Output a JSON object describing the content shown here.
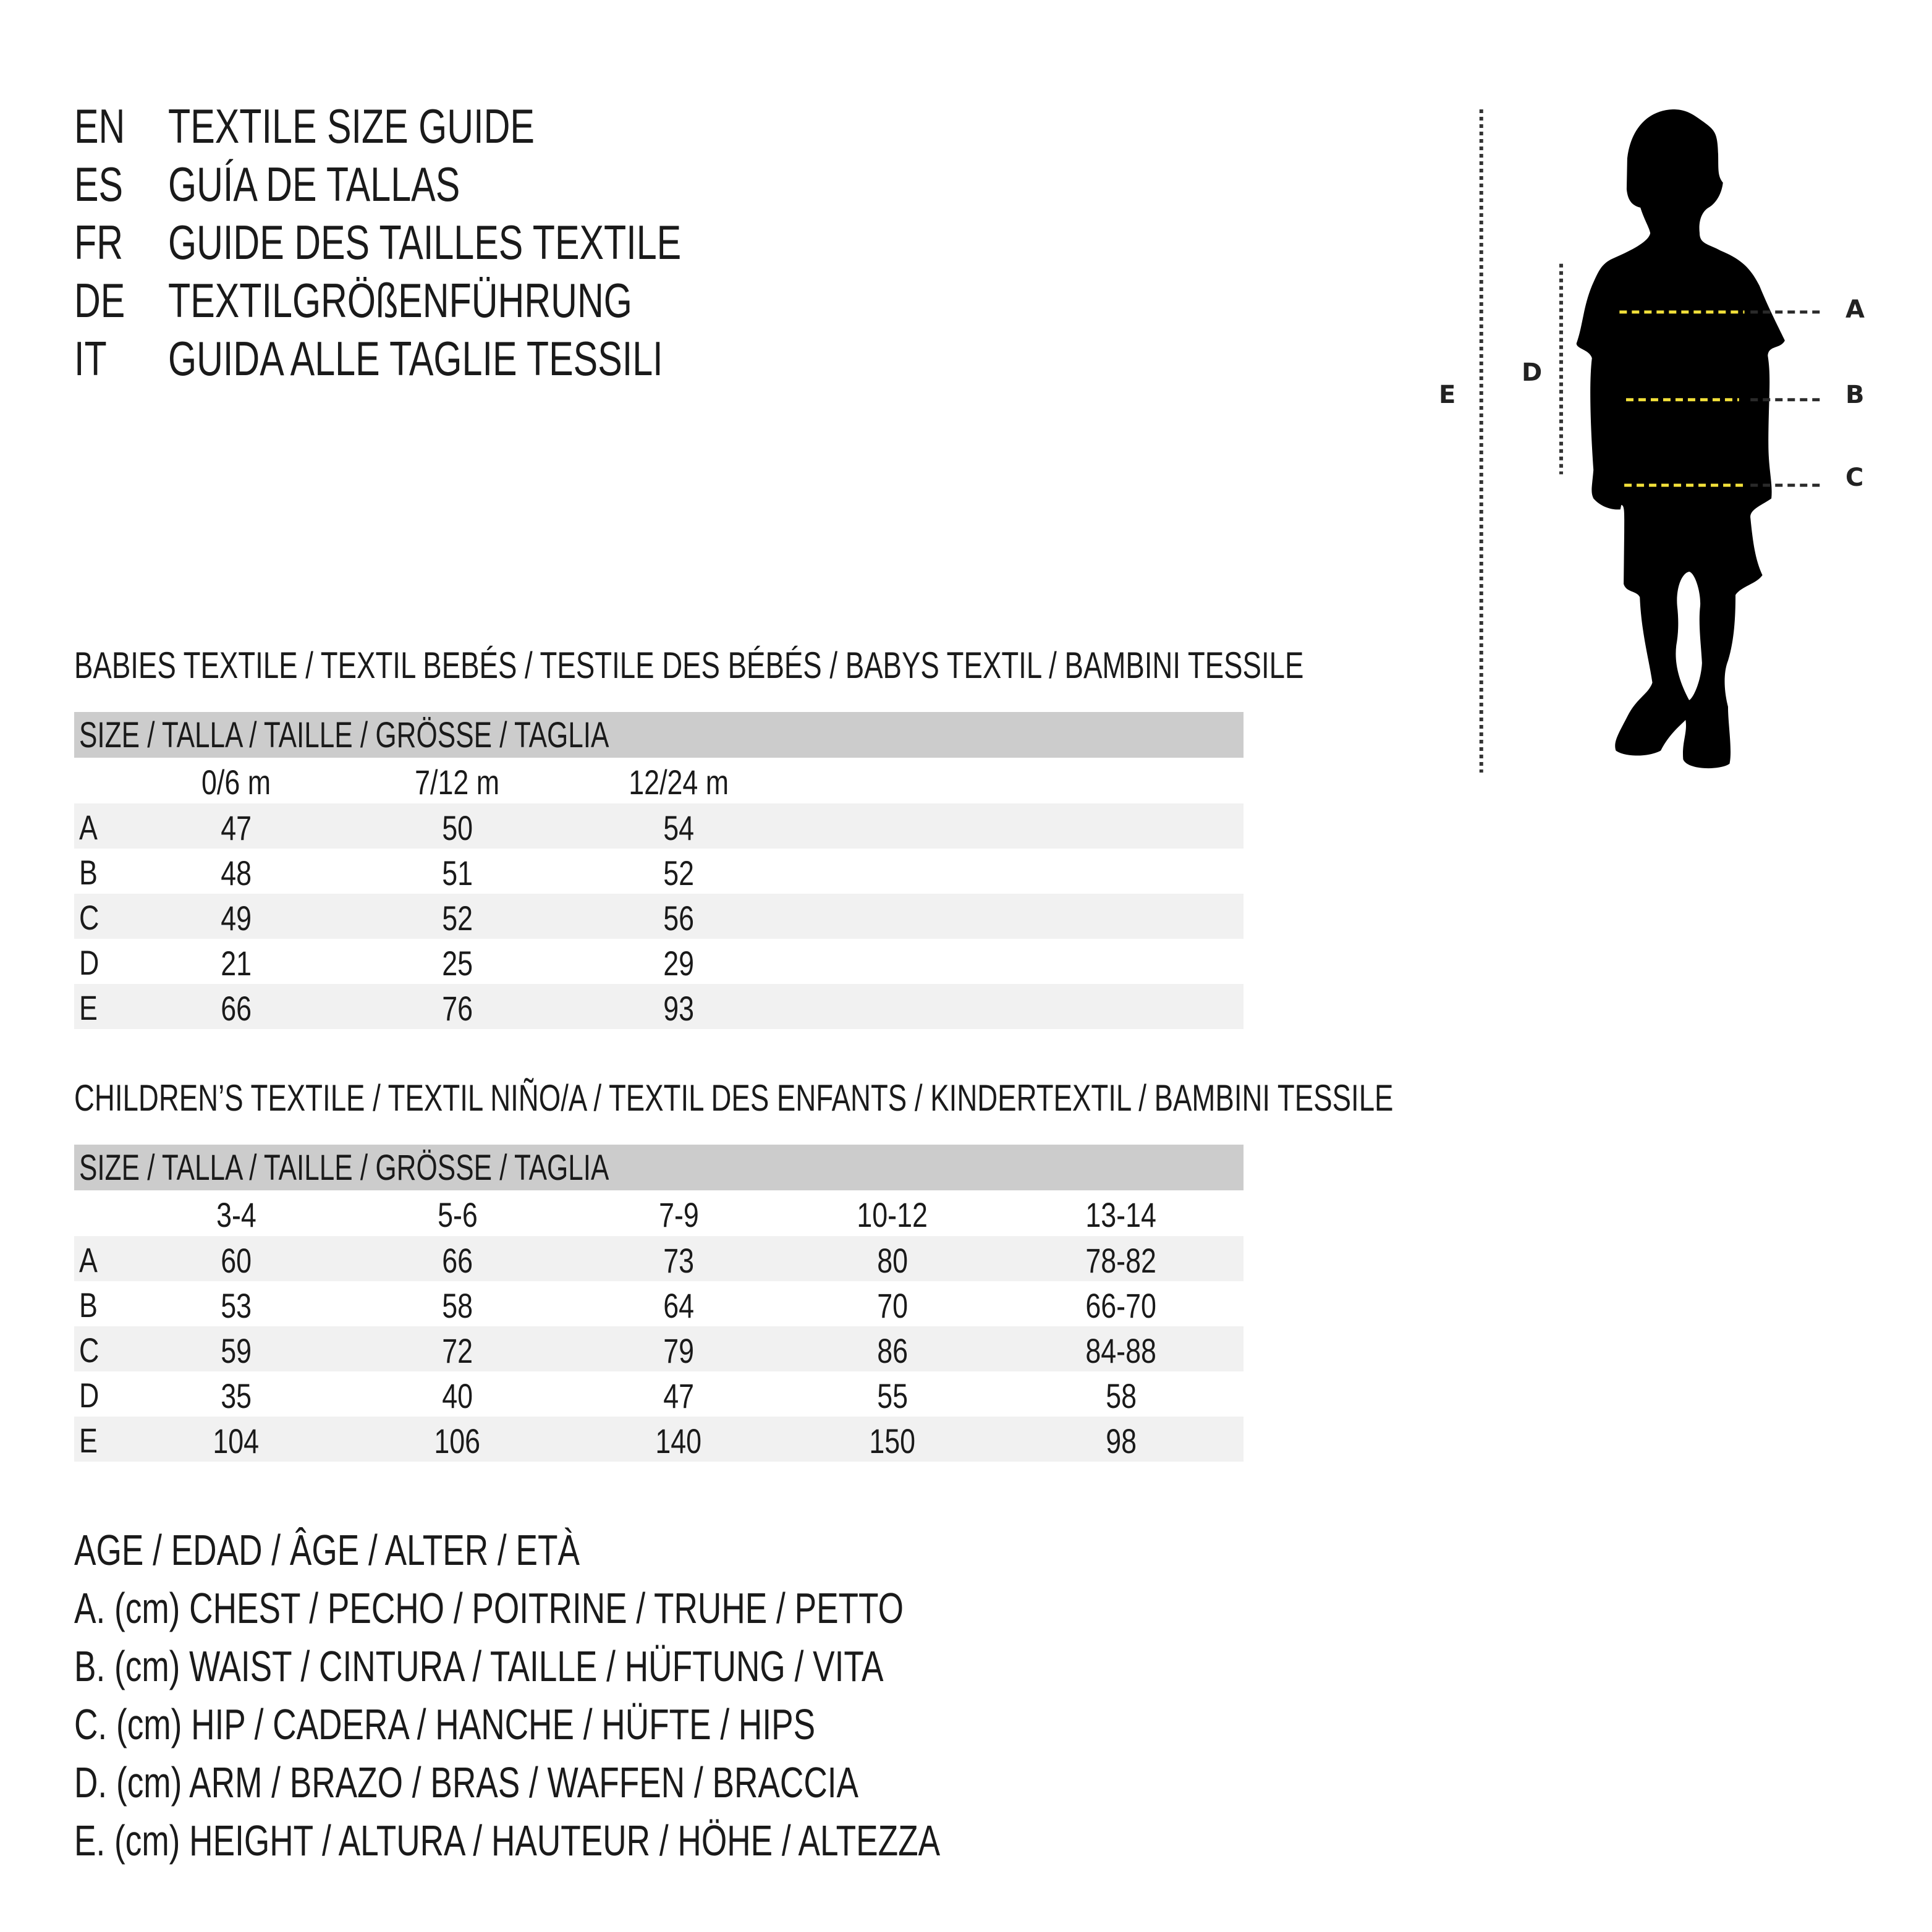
{
  "titles": [
    {
      "code": "EN",
      "text": "TEXTILE SIZE GUIDE"
    },
    {
      "code": "ES",
      "text": "GUÍA DE TALLAS"
    },
    {
      "code": "FR",
      "text": "GUIDE DES TAILLES TEXTILE"
    },
    {
      "code": "DE",
      "text": "TEXTILGRÖßENFÜHRUNG"
    },
    {
      "code": "IT",
      "text": "GUIDA ALLE TAGLIE TESSILI"
    }
  ],
  "babies": {
    "heading": "BABIES TEXTILE / TEXTIL BEBÉS / TESTILE DES BÉBÉS / BABYS TEXTIL / BAMBINI TESSILE",
    "size_label": "SIZE / TALLA / TAILLE / GRÖSSE / TAGLIA",
    "columns": [
      "0/6 m",
      "7/12 m",
      "12/24 m"
    ],
    "rows": [
      {
        "label": "A",
        "values": [
          "47",
          "50",
          "54"
        ]
      },
      {
        "label": "B",
        "values": [
          "48",
          "51",
          "52"
        ]
      },
      {
        "label": "C",
        "values": [
          "49",
          "52",
          "56"
        ]
      },
      {
        "label": "D",
        "values": [
          "21",
          "25",
          "29"
        ]
      },
      {
        "label": "E",
        "values": [
          "66",
          "76",
          "93"
        ]
      }
    ]
  },
  "children": {
    "heading": "CHILDREN’S TEXTILE / TEXTIL NIÑO/A / TEXTIL DES ENFANTS / KINDERTEXTIL / BAMBINI TESSILE",
    "size_label": "SIZE / TALLA / TAILLE / GRÖSSE / TAGLIA",
    "columns": [
      "3-4",
      "5-6",
      "7-9",
      "10-12",
      "13-14"
    ],
    "rows": [
      {
        "label": "A",
        "values": [
          "60",
          "66",
          "73",
          "80",
          "78-82"
        ]
      },
      {
        "label": "B",
        "values": [
          "53",
          "58",
          "64",
          "70",
          "66-70"
        ]
      },
      {
        "label": "C",
        "values": [
          "59",
          "72",
          "79",
          "86",
          "84-88"
        ]
      },
      {
        "label": "D",
        "values": [
          "35",
          "40",
          "47",
          "55",
          "58"
        ]
      },
      {
        "label": "E",
        "values": [
          "104",
          "106",
          "140",
          "150",
          "98"
        ]
      }
    ]
  },
  "legend": [
    "AGE / EDAD / ÂGE / ALTER / ETÀ",
    "A. (cm) CHEST / PECHO / POITRINE / TRUHE / PETTO",
    "B. (cm) WAIST / CINTURA / TAILLE / HÜFTUNG / VITA",
    "C. (cm) HIP / CADERA / HANCHE / HÜFTE / HIPS",
    "D. (cm) ARM / BRAZO / BRAS / WAFFEN / BRACCIA",
    "E. (cm) HEIGHT / ALTURA / HAUTEUR / HÖHE / ALTEZZA"
  ],
  "figure": {
    "labels": {
      "A": "A",
      "B": "B",
      "C": "C",
      "D": "D",
      "E": "E"
    },
    "icon": "child-silhouette",
    "colors": {
      "silhouette": "#000000",
      "measure_line": "#f2e03a",
      "guide_line": "#222222",
      "band": "#cccccc",
      "row_shade": "#f1f1f1"
    }
  }
}
